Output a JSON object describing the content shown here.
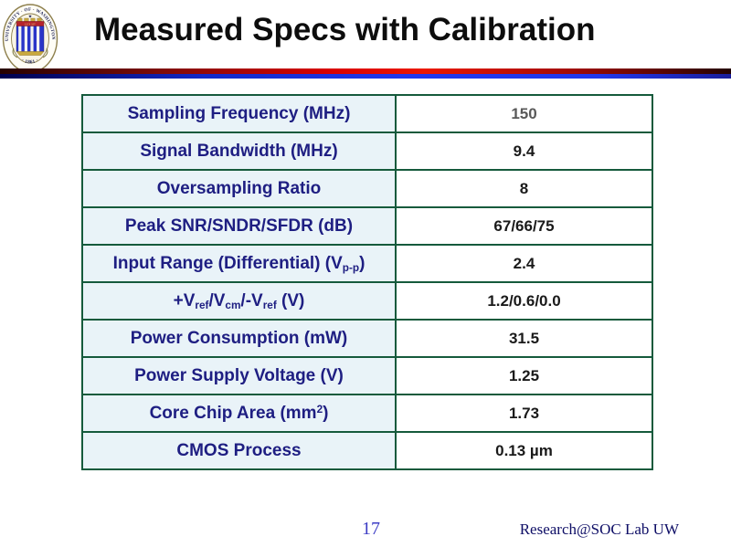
{
  "slide": {
    "title": "Measured Specs with Calibration",
    "page_number": "17",
    "credit": "Research@SOC Lab UW"
  },
  "logo": {
    "alt": "University of Washington seal",
    "ring_text_top": "UNIVERSITY · OF · WASHINGTON",
    "ring_text_bottom": "· 1861 ·",
    "band_text": "LUX SIT"
  },
  "table": {
    "rows": [
      {
        "label": "Sampling Frequency (MHz)",
        "value": "150",
        "muted": true
      },
      {
        "label": "Signal Bandwidth (MHz)",
        "value": "9.4"
      },
      {
        "label": "Oversampling Ratio",
        "value": "8"
      },
      {
        "label": "Peak SNR/SNDR/SFDR (dB)",
        "value": "67/66/75"
      },
      {
        "label": [
          {
            "t": "Input Range (Differential) (V"
          },
          {
            "sub": "p-p"
          },
          {
            "t": ")"
          }
        ],
        "value": "2.4"
      },
      {
        "label": [
          {
            "t": "+V"
          },
          {
            "sub": "ref"
          },
          {
            "t": "/V"
          },
          {
            "sub": "cm"
          },
          {
            "t": "/-V"
          },
          {
            "sub": "ref"
          },
          {
            "t": " (V)"
          }
        ],
        "value": "1.2/0.6/0.0"
      },
      {
        "label": "Power Consumption (mW)",
        "value": "31.5"
      },
      {
        "label": "Power Supply Voltage (V)",
        "value": "1.25"
      },
      {
        "label": [
          {
            "t": "Core Chip Area (mm"
          },
          {
            "sup": "2"
          },
          {
            "t": ")"
          }
        ],
        "value": "1.73"
      },
      {
        "label": "CMOS Process",
        "value": "0.13 µm"
      }
    ]
  },
  "colors": {
    "table_border": "#155a3c",
    "label_cell_bg": "#e9f3f8",
    "label_text": "#1e1e82",
    "value_text": "#1a1a1a",
    "muted_value_text": "#595959",
    "rule_red_bright": "#e00000",
    "rule_blue_bright": "#2137ec",
    "page_number_blue": "#3c3cc4",
    "credit_navy": "#0e0e66"
  }
}
